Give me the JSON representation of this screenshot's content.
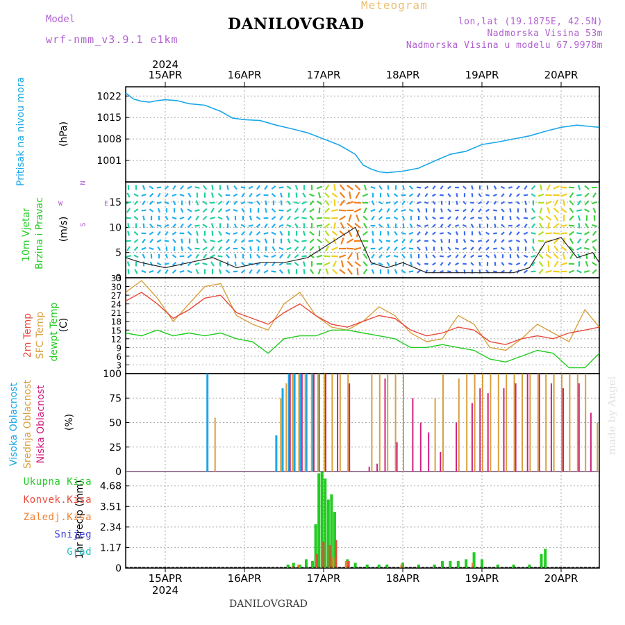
{
  "header": {
    "title": "DANILOVGRAD",
    "meteogram_label": "Meteogram",
    "model_label": "Model",
    "model_name": "wrf-nmm_v3.9.1  e1km",
    "coords": "lon,lat (19.1875E, 42.5N)",
    "elevation": "Nadmorska Visina 53m",
    "model_elevation": "Nadmorska Visina u modelu 67.9978m",
    "bottom_title": "DANILOVGRAD",
    "made_by": "made by Angel"
  },
  "x_axis": {
    "year": "2024",
    "labels": [
      "15APR",
      "16APR",
      "17APR",
      "18APR",
      "19APR",
      "20APR"
    ]
  },
  "panels": {
    "pressure": {
      "label1": "Pritisak na nivou mora",
      "unit": "(hPa)"
    },
    "wind": {
      "label1": "10m Vjetar",
      "label2": "Brzina i Pravac",
      "unit": "(m/s)",
      "compass": [
        "N",
        "W",
        "E",
        "S"
      ]
    },
    "temp": {
      "label1": "2m Temp",
      "label2": "SFC Temp",
      "label3": "dewpt Temp",
      "unit": "(C)"
    },
    "cloud": {
      "label1": "Visoka Oblacnost",
      "label2": "Srednja Oblacnost",
      "label3": "Niska Oblacnost",
      "unit": "(%)"
    },
    "precip": {
      "unit": "1hr Precip (mm)",
      "legend": [
        "Ukupna Kisa",
        "Konvek.Kisa",
        "Zaledj.Kisa",
        "Snijeg",
        "Grad"
      ]
    }
  },
  "colors": {
    "pressure": "#1aa7e8",
    "temp2m": "#e84a3a",
    "sfc": "#d8a040",
    "dew": "#22cc22",
    "cloud_high": "#1aa7e8",
    "cloud_mid": "#d8a040",
    "cloud_low": "#d02080",
    "rain_total": "#22cc22",
    "rain_conv": "#e84a3a",
    "rain_frz": "#f08030",
    "snow": "#4040e0",
    "hail": "#20c0c0",
    "purple": "#b060d0"
  },
  "chart_data": [
    {
      "type": "line",
      "title": "Pritisak na nivou mora",
      "ylabel": "(hPa)",
      "ylim": [
        994,
        1025
      ],
      "yticks": [
        1001,
        1008,
        1015,
        1022
      ],
      "x_unit": "days since 15APR 00UTC",
      "series": [
        {
          "name": "Pritisak na nivou mora",
          "x": [
            -0.5,
            -0.4,
            -0.3,
            -0.2,
            -0.1,
            0,
            0.15,
            0.3,
            0.5,
            0.7,
            0.85,
            1.0,
            1.2,
            1.4,
            1.6,
            1.8,
            2.0,
            2.2,
            2.4,
            2.5,
            2.6,
            2.7,
            2.8,
            3.0,
            3.2,
            3.4,
            3.6,
            3.8,
            4.0,
            4.2,
            4.4,
            4.6,
            4.8,
            5.0,
            5.2,
            5.4,
            5.5
          ],
          "y": [
            1023,
            1021,
            1020.3,
            1020,
            1020.5,
            1020.8,
            1020.5,
            1019.5,
            1019,
            1017,
            1014.8,
            1014.3,
            1014,
            1012.5,
            1011.3,
            1010,
            1008,
            1006,
            1003,
            999.5,
            998.2,
            997.3,
            997,
            997.5,
            998.5,
            1000.8,
            1003,
            1004,
            1006.2,
            1007,
            1008,
            1009,
            1010.5,
            1011.8,
            1012.5,
            1012,
            1011.8
          ]
        }
      ]
    },
    {
      "type": "line",
      "title": "10m Vjetar Brzina i Pravac",
      "ylabel": "(m/s)",
      "ylim": [
        0,
        19
      ],
      "yticks": [
        0,
        5,
        10,
        15
      ],
      "series": [
        {
          "name": "10m Vjetar",
          "x": [
            -0.5,
            -0.3,
            0,
            0.3,
            0.6,
            0.9,
            1.2,
            1.5,
            1.8,
            2.0,
            2.2,
            2.4,
            2.6,
            2.8,
            3.0,
            3.3,
            3.6,
            3.9,
            4.2,
            4.4,
            4.6,
            4.8,
            5.0,
            5.2,
            5.4,
            5.5
          ],
          "y": [
            4,
            3,
            2,
            3,
            4,
            2,
            3,
            3,
            4,
            6,
            8,
            10,
            3,
            2,
            3,
            1,
            1,
            1,
            1,
            1,
            2,
            7,
            8,
            4,
            5,
            3
          ]
        }
      ]
    },
    {
      "type": "line",
      "title": "Temperatura",
      "ylabel": "(C)",
      "ylim": [
        0,
        33
      ],
      "yticks": [
        3,
        6,
        9,
        12,
        15,
        18,
        21,
        24,
        27,
        30,
        33
      ],
      "series": [
        {
          "name": "2m Temp",
          "x": [
            -0.5,
            -0.3,
            -0.1,
            0.1,
            0.3,
            0.5,
            0.7,
            0.9,
            1.1,
            1.3,
            1.5,
            1.7,
            1.9,
            2.1,
            2.3,
            2.5,
            2.7,
            2.9,
            3.1,
            3.3,
            3.5,
            3.7,
            3.9,
            4.1,
            4.3,
            4.5,
            4.7,
            4.9,
            5.1,
            5.3,
            5.5
          ],
          "y": [
            25,
            28,
            24,
            19,
            22,
            26,
            27,
            21,
            19,
            17,
            21,
            24,
            20,
            17,
            16,
            18,
            20,
            19,
            15,
            13,
            14,
            16,
            15,
            11,
            10,
            12,
            13,
            12,
            14,
            15,
            16
          ]
        },
        {
          "name": "SFC Temp",
          "x": [
            -0.5,
            -0.3,
            -0.1,
            0.1,
            0.3,
            0.5,
            0.7,
            0.9,
            1.1,
            1.3,
            1.5,
            1.7,
            1.9,
            2.1,
            2.3,
            2.5,
            2.7,
            2.9,
            3.1,
            3.3,
            3.5,
            3.7,
            3.9,
            4.1,
            4.3,
            4.5,
            4.7,
            4.9,
            5.1,
            5.3,
            5.5
          ],
          "y": [
            28,
            32,
            26,
            18,
            24,
            30,
            31,
            20,
            17,
            15,
            24,
            28,
            20,
            16,
            15,
            18,
            23,
            20,
            14,
            11,
            12,
            20,
            17,
            9,
            8,
            12,
            17,
            14,
            11,
            22,
            16
          ]
        },
        {
          "name": "dewpt Temp",
          "x": [
            -0.5,
            -0.3,
            -0.1,
            0.1,
            0.3,
            0.5,
            0.7,
            0.9,
            1.1,
            1.3,
            1.5,
            1.7,
            1.9,
            2.1,
            2.3,
            2.5,
            2.7,
            2.9,
            3.1,
            3.3,
            3.5,
            3.7,
            3.9,
            4.1,
            4.3,
            4.5,
            4.7,
            4.9,
            5.1,
            5.3,
            5.5
          ],
          "y": [
            14,
            13,
            15,
            13,
            14,
            13,
            14,
            12,
            11,
            7,
            12,
            13,
            13,
            15,
            15,
            14,
            13,
            12,
            9,
            9,
            10,
            9,
            8,
            5,
            4,
            6,
            8,
            7,
            2,
            2,
            7
          ]
        }
      ]
    },
    {
      "type": "bar",
      "title": "Oblacnost",
      "ylabel": "(%)",
      "ylim": [
        0,
        100
      ],
      "yticks": [
        0,
        25,
        50,
        75,
        100
      ],
      "series": [
        {
          "name": "Visoka Oblacnost",
          "x": [
            0.55,
            1.42,
            1.5,
            1.58,
            1.65,
            1.72,
            1.8,
            1.88,
            1.96
          ],
          "values": [
            100,
            37,
            85,
            100,
            100,
            100,
            100,
            100,
            100
          ]
        },
        {
          "name": "Srednja Oblacnost",
          "x": [
            0.62,
            1.45,
            1.52,
            1.6,
            1.68,
            1.76,
            1.84,
            1.92,
            2.0,
            2.1,
            2.2,
            2.3,
            2.6,
            2.7,
            2.8,
            2.9,
            3.0,
            3.4,
            3.5,
            3.7,
            3.8,
            3.9,
            4.0,
            4.1,
            4.2,
            4.3,
            4.4,
            4.5,
            4.6,
            4.7,
            4.8,
            4.9,
            5.0,
            5.1,
            5.2,
            5.3,
            5.45
          ],
          "values": [
            55,
            75,
            90,
            100,
            100,
            100,
            100,
            100,
            100,
            100,
            100,
            100,
            100,
            100,
            100,
            100,
            100,
            75,
            100,
            95,
            100,
            100,
            100,
            100,
            100,
            100,
            100,
            100,
            100,
            100,
            100,
            100,
            100,
            100,
            100,
            100,
            50
          ]
        },
        {
          "name": "Niska Oblacnost",
          "x": [
            1.55,
            1.7,
            1.85,
            2.0,
            2.15,
            2.3,
            2.55,
            2.65,
            2.75,
            2.9,
            3.1,
            3.2,
            3.3,
            3.45,
            3.65,
            3.85,
            3.95,
            4.05,
            4.25,
            4.4,
            4.55,
            4.7,
            4.85,
            5.0,
            5.2,
            5.35,
            5.5
          ],
          "values": [
            100,
            100,
            100,
            100,
            100,
            90,
            5,
            8,
            95,
            30,
            75,
            50,
            40,
            20,
            50,
            70,
            85,
            80,
            85,
            90,
            100,
            100,
            90,
            85,
            90,
            60,
            75
          ]
        }
      ]
    },
    {
      "type": "bar",
      "title": "1hr Precip",
      "ylabel": "1hr Precip (mm)",
      "ylim": [
        0,
        5.5
      ],
      "yticks": [
        0,
        1.17,
        2.34,
        3.51,
        4.68
      ],
      "series": [
        {
          "name": "Ukupna Kisa",
          "x": [
            1.55,
            1.62,
            1.7,
            1.78,
            1.86,
            1.9,
            1.94,
            1.98,
            2.02,
            2.06,
            2.1,
            2.14,
            2.3,
            2.4,
            2.55,
            2.7,
            2.8,
            3.0,
            3.2,
            3.4,
            3.5,
            3.6,
            3.7,
            3.8,
            3.9,
            4.0,
            4.2,
            4.4,
            4.6,
            4.75,
            4.8
          ],
          "values": [
            0.2,
            0.3,
            0.2,
            0.5,
            0.4,
            2.5,
            5.4,
            5.5,
            5.1,
            3.9,
            4.2,
            3.2,
            0.5,
            0.3,
            0.2,
            0.2,
            0.2,
            0.3,
            0.2,
            0.2,
            0.4,
            0.4,
            0.4,
            0.5,
            0.9,
            0.5,
            0.2,
            0.2,
            0.2,
            0.8,
            1.1
          ]
        },
        {
          "name": "Konvek.Kisa",
          "x": [
            1.9,
            1.98,
            2.06,
            2.14,
            2.3
          ],
          "values": [
            0.8,
            1.5,
            1.3,
            1.6,
            0.4
          ]
        },
        {
          "name": "Zaledj.Kisa",
          "x": [
            1.62,
            1.7,
            2.14,
            2.3,
            3.0,
            3.9
          ],
          "values": [
            0.1,
            0.2,
            0.6,
            0.4,
            0.2,
            0.3
          ]
        }
      ]
    }
  ]
}
